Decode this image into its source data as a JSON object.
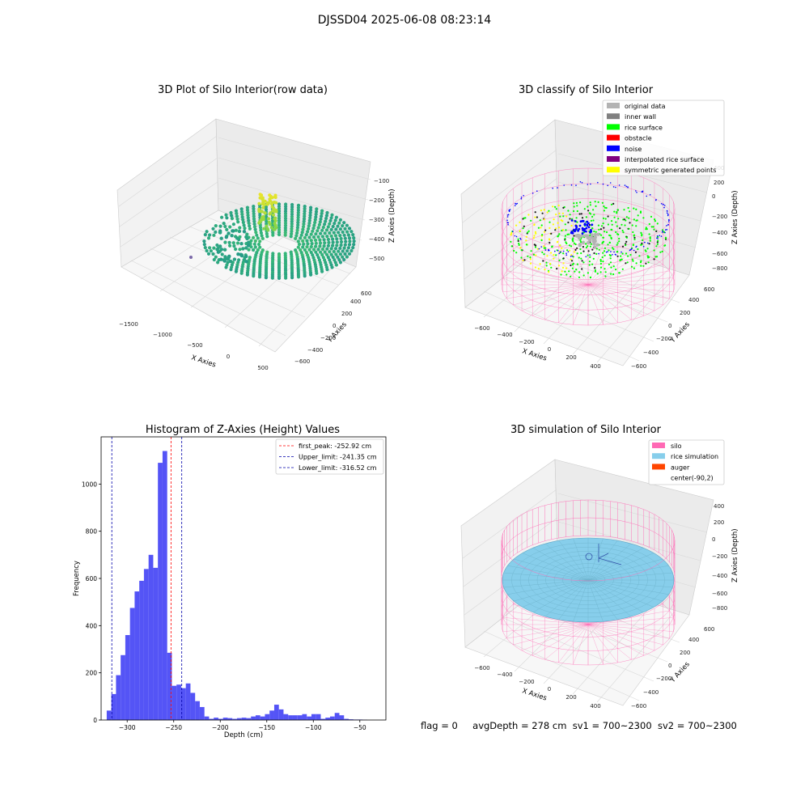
{
  "suptitle": "DJSSD04 2025-06-08 08:23:14",
  "footer": {
    "flag": "flag = 0",
    "avg_depth": "avgDepth = 278 cm",
    "sv1": "sv1 = 700~2300",
    "sv2": "sv2 = 700~2300"
  },
  "colors": {
    "hist_bar": "#4b4bf5",
    "first_peak_line": "#ff0000",
    "limit_line": "#0000aa",
    "silo": "#ff69b4",
    "rice_simulation": "#87ceeb",
    "auger": "#ff4500",
    "original_data": "#b3b3b3",
    "inner_wall": "#808080",
    "rice_surface": "#00ff00",
    "obstacle": "#ff0000",
    "noise": "#0000ff",
    "interpolated_rice_surface": "#800080",
    "symmetric_generated_points": "#ffff00"
  },
  "chart_data": [
    {
      "type": "scatter3d",
      "title": "3D Plot of Silo Interior(row data)",
      "xlabel": "X Axies",
      "ylabel": "Y Axies",
      "zlabel": "Z Axies (Depth)",
      "x_ticks": [
        "−1500",
        "−1000",
        "−500",
        "0",
        "500"
      ],
      "y_ticks": [
        "−600",
        "−400",
        "−200",
        "0",
        "200",
        "400",
        "600"
      ],
      "z_ticks": [
        "−500",
        "−400",
        "−300",
        "−200",
        "−100"
      ],
      "colormap": "viridis"
    },
    {
      "type": "scatter3d",
      "title": "3D classify of Silo Interior",
      "xlabel": "X Axies",
      "ylabel": "Y Axies",
      "zlabel": "Z Axies (Depth)",
      "x_ticks": [
        "−600",
        "−400",
        "−200",
        "0",
        "200",
        "400"
      ],
      "y_ticks": [
        "−600",
        "−400",
        "−200",
        "0",
        "200",
        "400",
        "600"
      ],
      "z_ticks": [
        "−800",
        "−600",
        "−400",
        "−200",
        "0",
        "200",
        "400"
      ],
      "legend": [
        {
          "label": "original data",
          "color": "#b3b3b3"
        },
        {
          "label": "inner wall",
          "color": "#808080"
        },
        {
          "label": "rice surface",
          "color": "#00ff00"
        },
        {
          "label": "obstacle",
          "color": "#ff0000"
        },
        {
          "label": "noise",
          "color": "#0000ff"
        },
        {
          "label": "interpolated rice surface",
          "color": "#800080"
        },
        {
          "label": "symmetric generated points",
          "color": "#ffff00"
        }
      ]
    },
    {
      "type": "bar",
      "title": "Histogram of Z-Axies (Height) Values",
      "xlabel": "Depth (cm)",
      "ylabel": "Frequency",
      "xlim": [
        -328,
        -22
      ],
      "ylim": [
        0,
        1200
      ],
      "x_ticks": [
        -300,
        -250,
        -200,
        -150,
        -100,
        -50
      ],
      "y_ticks": [
        0,
        200,
        400,
        600,
        800,
        1000
      ],
      "bin_width": 5,
      "bin_starts": [
        -322,
        -317,
        -312,
        -307,
        -302,
        -297,
        -292,
        -287,
        -282,
        -277,
        -272,
        -267,
        -262,
        -257,
        -252,
        -247,
        -242,
        -237,
        -232,
        -227,
        -222,
        -217,
        -212,
        -207,
        -202,
        -197,
        -192,
        -187,
        -182,
        -177,
        -172,
        -167,
        -162,
        -157,
        -152,
        -147,
        -142,
        -137,
        -132,
        -127,
        -122,
        -117,
        -112,
        -107,
        -102,
        -97,
        -92,
        -87,
        -82,
        -77,
        -72,
        -67,
        -62,
        -57,
        -52,
        -47,
        -42,
        -37
      ],
      "values": [
        40,
        110,
        190,
        275,
        360,
        475,
        545,
        590,
        640,
        700,
        645,
        1090,
        1140,
        285,
        145,
        150,
        135,
        155,
        115,
        80,
        55,
        15,
        5,
        10,
        5,
        10,
        8,
        5,
        8,
        10,
        8,
        15,
        20,
        15,
        25,
        40,
        65,
        45,
        25,
        20,
        20,
        20,
        25,
        15,
        25,
        25,
        5,
        10,
        15,
        30,
        20,
        5,
        3,
        2,
        2,
        1,
        0,
        0
      ],
      "vlines": [
        {
          "label": "first_peak: -252.92 cm",
          "x": -252.92,
          "color": "#ff0000"
        },
        {
          "label": "Upper_limit: -241.35 cm",
          "x": -241.35,
          "color": "#0000aa"
        },
        {
          "label": "Lower_limit: -316.52 cm",
          "x": -316.52,
          "color": "#0000aa"
        }
      ]
    },
    {
      "type": "surface3d",
      "title": "3D simulation of Silo Interior",
      "xlabel": "X Axies",
      "ylabel": "Y Axies",
      "zlabel": "Z Axies (Depth)",
      "x_ticks": [
        "−600",
        "−400",
        "−200",
        "0",
        "200",
        "400"
      ],
      "y_ticks": [
        "−600",
        "−400",
        "−200",
        "0",
        "200",
        "400",
        "600"
      ],
      "z_ticks": [
        "−800",
        "−600",
        "−400",
        "−200",
        "0",
        "200",
        "400"
      ],
      "legend": [
        {
          "label": "silo",
          "color": "#ff69b4"
        },
        {
          "label": "rice simulation",
          "color": "#87ceeb"
        },
        {
          "label": "auger",
          "color": "#ff4500"
        },
        {
          "label": "center(-90,2)",
          "color": ""
        }
      ]
    }
  ]
}
